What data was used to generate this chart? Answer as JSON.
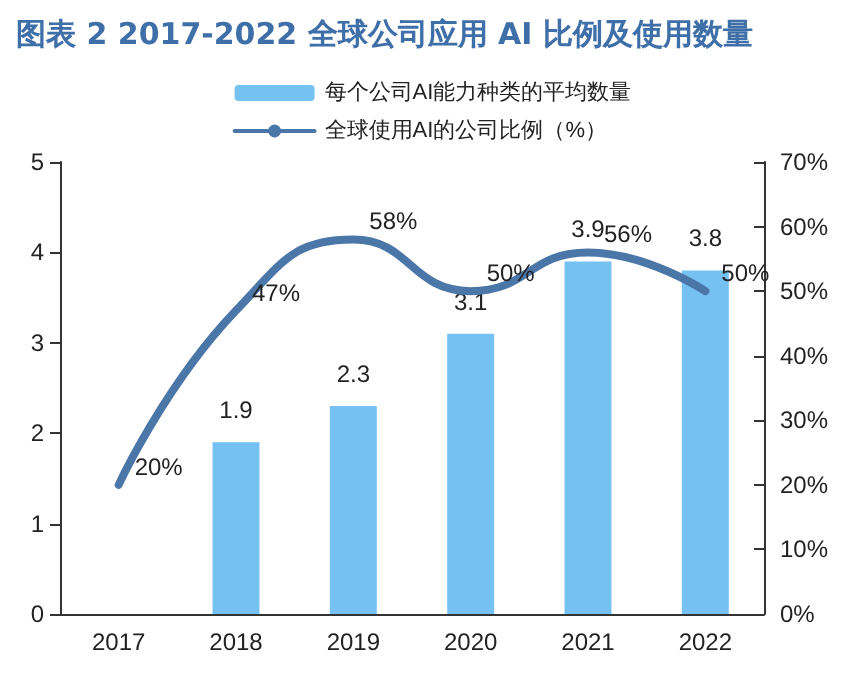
{
  "chart_data": {
    "type": "bar",
    "title": "图表 2 2017-2022 全球公司应用 AI 比例及使用数量",
    "categories": [
      "2017",
      "2018",
      "2019",
      "2020",
      "2021",
      "2022"
    ],
    "series": [
      {
        "name": "每个公司AI能力种类的平均数量",
        "color": "#75c1f2",
        "values": [
          null,
          1.9,
          2.3,
          3.1,
          3.9,
          3.8
        ]
      },
      {
        "name": "全球使用AI的公司比例（%）",
        "type": "line",
        "axis": "y2",
        "color": "#4a76a8",
        "values": [
          20,
          47,
          58,
          50,
          56,
          50
        ],
        "value_labels": [
          "20%",
          "47%",
          "58%",
          "50%",
          "56%",
          "50%"
        ]
      }
    ],
    "ylim": [
      0,
      5
    ],
    "yticks": [
      0,
      1,
      2,
      3,
      4,
      5
    ],
    "y2lim": [
      0,
      70
    ],
    "y2ticks": [
      {
        "value": 0,
        "label": "0%"
      },
      {
        "value": 10,
        "label": "10%"
      },
      {
        "value": 20,
        "label": "20%"
      },
      {
        "value": 30,
        "label": "30%"
      },
      {
        "value": 40,
        "label": "40%"
      },
      {
        "value": 50,
        "label": "50%"
      },
      {
        "value": 60,
        "label": "60%"
      },
      {
        "value": 70,
        "label": "70%"
      }
    ],
    "data_labels": true,
    "grid": false,
    "legend": "top",
    "marker": "none",
    "line_style": "solid"
  }
}
